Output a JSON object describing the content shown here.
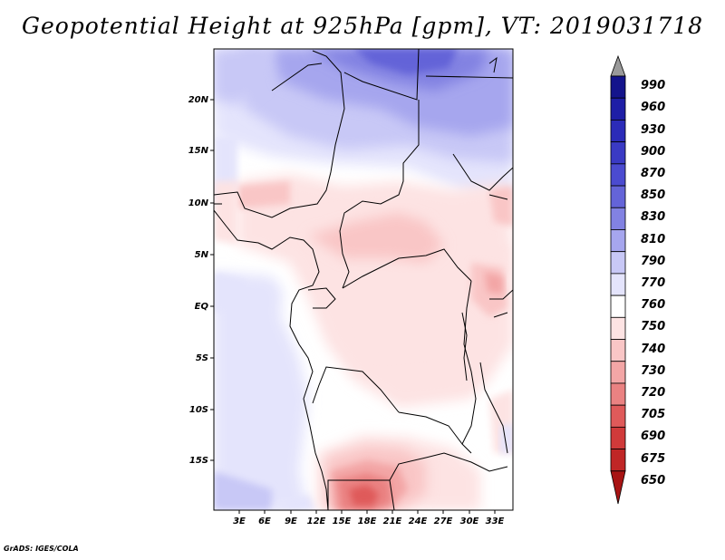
{
  "title": "Geopotential Height at 925hPa [gpm], VT: 2019031718",
  "footer": "GrADS: IGES/COLA",
  "lat_labels": [
    "20N",
    "15N",
    "10N",
    "5N",
    "EQ",
    "5S",
    "10S",
    "15S"
  ],
  "lon_labels": [
    "3E",
    "6E",
    "9E",
    "12E",
    "15E",
    "18E",
    "21E",
    "24E",
    "27E",
    "30E",
    "33E"
  ],
  "colorbar": {
    "labels": [
      "990",
      "960",
      "930",
      "900",
      "870",
      "850",
      "830",
      "810",
      "790",
      "770",
      "760",
      "750",
      "740",
      "730",
      "720",
      "705",
      "690",
      "675",
      "650"
    ],
    "colors": [
      "#14148c",
      "#1e1ea6",
      "#2b2bb8",
      "#3a3ac4",
      "#4b4bd0",
      "#6464d8",
      "#8282e2",
      "#a6a6ee",
      "#c8c8f6",
      "#e4e4fc",
      "#ffffff",
      "#fde3e3",
      "#f9c6c6",
      "#f3a6a6",
      "#ea8282",
      "#df5a5a",
      "#d03a3a",
      "#c02626",
      "#a81414"
    ],
    "top_arrow_color": "#9a9a9a"
  }
}
